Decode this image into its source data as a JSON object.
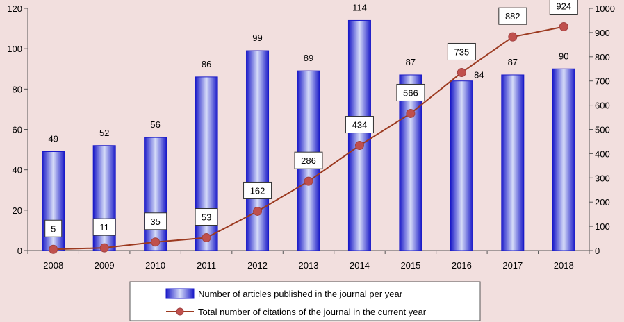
{
  "chart_data": {
    "type": "bar",
    "categories": [
      "2008",
      "2009",
      "2010",
      "2011",
      "2012",
      "2013",
      "2014",
      "2015",
      "2016",
      "2017",
      "2018"
    ],
    "series": [
      {
        "name": "Number of articles published in the journal per year",
        "type": "bar",
        "axis": "left",
        "values": [
          49,
          52,
          56,
          86,
          99,
          89,
          114,
          87,
          84,
          87,
          90
        ]
      },
      {
        "name": "Total number of citations of the journal in the current year",
        "type": "line",
        "axis": "right",
        "values": [
          5,
          11,
          35,
          53,
          162,
          286,
          434,
          566,
          735,
          882,
          924
        ]
      }
    ],
    "y_left": {
      "min": 0,
      "max": 120,
      "ticks": [
        "0",
        "20",
        "40",
        "60",
        "80",
        "100",
        "120"
      ]
    },
    "y_right": {
      "min": 0,
      "max": 1000,
      "ticks": [
        "0",
        "100",
        "200",
        "300",
        "400",
        "500",
        "600",
        "700",
        "800",
        "900",
        "1000"
      ]
    },
    "legend_position": "bottom",
    "colors": {
      "background": "#f2dfde",
      "bar_dark": "#1a1ac8",
      "bar_light": "#d6dcf8",
      "line": "#9c3a20",
      "marker": "#c0504d"
    }
  }
}
